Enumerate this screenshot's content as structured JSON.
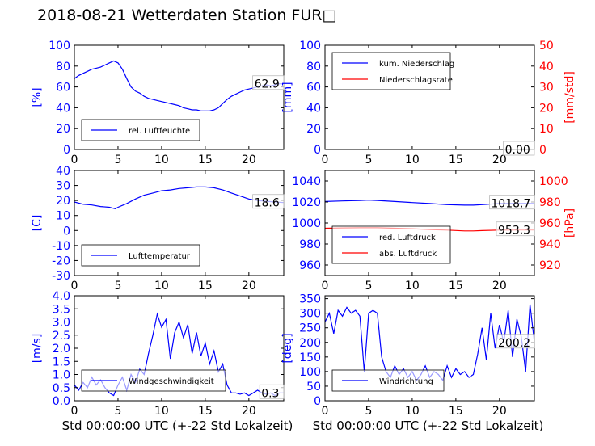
{
  "title": "2018-08-21 Wetterdaten Station FUR□",
  "xlabel": "Std 00:00:00 UTC (+-22 Std Lokalzeit)",
  "colors": {
    "primary": "#0000ff",
    "secondary": "#ff0000"
  },
  "chart_data": [
    {
      "id": "humidity",
      "type": "line",
      "ylabel": "[%]",
      "xlim": [
        0,
        24
      ],
      "ylim": [
        0,
        100
      ],
      "xticks": [
        0,
        5,
        10,
        15,
        20
      ],
      "yticks": [
        0,
        20,
        40,
        60,
        80,
        100
      ],
      "legend": "bottom-left",
      "last_value_label": "62.9",
      "series": [
        {
          "name": "rel. Luftfeuchte",
          "color": "#0000ff",
          "x": [
            0,
            0.5,
            1,
            1.5,
            2,
            2.5,
            3,
            3.5,
            4,
            4.5,
            5,
            5.5,
            6,
            6.5,
            7,
            7.5,
            8,
            8.5,
            9,
            9.5,
            10,
            10.5,
            11,
            11.5,
            12,
            12.5,
            13,
            13.5,
            14,
            14.5,
            15,
            15.5,
            16,
            16.5,
            17,
            17.5,
            18,
            18.5,
            19,
            19.5,
            20,
            20.5,
            21,
            21.5,
            22,
            22.5,
            23,
            23.5,
            24
          ],
          "y": [
            68,
            71,
            73,
            75,
            77,
            78,
            79,
            81,
            83,
            85,
            83,
            77,
            68,
            60,
            56,
            54,
            51,
            49,
            48,
            47,
            46,
            45,
            44,
            43,
            42,
            40,
            39,
            38,
            38,
            37,
            37,
            37,
            38,
            40,
            44,
            48,
            51,
            53,
            55,
            57,
            58,
            59,
            60,
            61,
            62,
            61,
            62,
            63,
            63
          ]
        }
      ]
    },
    {
      "id": "precipitation",
      "type": "line",
      "ylabel": "[mm]",
      "ylabel_right": "[mm/std]",
      "xlim": [
        0,
        24
      ],
      "ylim": [
        0,
        100
      ],
      "ylim_right": [
        0,
        50
      ],
      "xticks": [
        0,
        5,
        10,
        15,
        20
      ],
      "yticks": [
        0,
        20,
        40,
        60,
        80,
        100
      ],
      "yticks_right": [
        0,
        10,
        20,
        30,
        40,
        50
      ],
      "legend": "top-left",
      "last_value_label": "0.00",
      "series": [
        {
          "name": "kum. Niederschlag",
          "color": "#0000ff",
          "x": [
            0,
            24
          ],
          "y": [
            0,
            0
          ]
        },
        {
          "name": "Niederschlagsrate",
          "color": "#ff0000",
          "axis": "right",
          "x": [
            0,
            24
          ],
          "y": [
            0,
            0
          ]
        }
      ]
    },
    {
      "id": "temperature",
      "type": "line",
      "ylabel": "[C]",
      "xlim": [
        0,
        24
      ],
      "ylim": [
        -30,
        40
      ],
      "xticks": [
        0,
        5,
        10,
        15,
        20
      ],
      "yticks": [
        -30,
        -20,
        -10,
        0,
        10,
        20,
        30,
        40
      ],
      "legend": "bottom-left",
      "last_value_label": "18.6",
      "series": [
        {
          "name": "Lufttemperatur",
          "color": "#0000ff",
          "x": [
            0,
            1,
            2,
            3,
            4,
            4.7,
            5,
            6,
            7,
            8,
            9,
            10,
            11,
            12,
            13,
            14,
            15,
            16,
            17,
            18,
            19,
            20,
            21,
            22,
            23,
            24
          ],
          "y": [
            19,
            17.5,
            17,
            16,
            15.5,
            14.5,
            15.5,
            18,
            21,
            23.5,
            25,
            26.5,
            27,
            28,
            28.5,
            29,
            29,
            28.5,
            27,
            25,
            23,
            21,
            20,
            19.5,
            19,
            18.6
          ]
        }
      ]
    },
    {
      "id": "pressure",
      "type": "line",
      "ylabel_right": "[hPa]",
      "xlim": [
        0,
        24
      ],
      "ylim": [
        950,
        1050
      ],
      "ylim_right": [
        910,
        1010
      ],
      "xticks": [
        0,
        5,
        10,
        15,
        20
      ],
      "yticks": [
        960,
        980,
        1000,
        1020,
        1040
      ],
      "yticks_right": [
        920,
        940,
        960,
        980,
        1000
      ],
      "legend": "bottom-left",
      "value_labels": [
        "1018.7",
        "953.3"
      ],
      "series": [
        {
          "name": "red. Luftdruck",
          "color": "#0000ff",
          "x": [
            0,
            2,
            4,
            5,
            6,
            8,
            10,
            12,
            14,
            16,
            17,
            18,
            20,
            22,
            24
          ],
          "y": [
            1020.5,
            1021,
            1021.5,
            1021.8,
            1021.5,
            1020.5,
            1019.5,
            1018.5,
            1017.5,
            1017,
            1017,
            1017.5,
            1018.5,
            1018.7,
            1018.7
          ]
        },
        {
          "name": "abs. Luftdruck",
          "color": "#ff0000",
          "axis": "right",
          "x": [
            0,
            2,
            4,
            6,
            8,
            10,
            12,
            14,
            16,
            17,
            18,
            20,
            22,
            24
          ],
          "y": [
            955,
            955.3,
            955.5,
            955.5,
            955,
            954.5,
            953.8,
            953.2,
            952.5,
            952.5,
            952.8,
            953.2,
            953.3,
            953.3
          ]
        }
      ]
    },
    {
      "id": "windspeed",
      "type": "line",
      "ylabel": "[m/s]",
      "xlim": [
        0,
        24
      ],
      "ylim": [
        0,
        4
      ],
      "xticks": [
        0,
        5,
        10,
        15,
        20
      ],
      "yticks": [
        0.0,
        0.5,
        1.0,
        1.5,
        2.0,
        2.5,
        3.0,
        3.5,
        4.0
      ],
      "ytick_labels": [
        "0.0",
        "0.5",
        "1.0",
        "1.5",
        "2.0",
        "2.5",
        "3.0",
        "3.5",
        "4.0"
      ],
      "legend": "bottom-left",
      "last_value_label": "0.3",
      "series": [
        {
          "name": "Windgeschwindigkeit",
          "color": "#0000ff",
          "x": [
            0,
            0.5,
            1,
            1.5,
            2,
            2.5,
            3,
            3.5,
            4,
            4.5,
            5,
            5.5,
            6,
            6.5,
            7,
            7.5,
            8,
            8.5,
            9,
            9.5,
            10,
            10.5,
            11,
            11.5,
            12,
            12.5,
            13,
            13.5,
            14,
            14.5,
            15,
            15.5,
            16,
            16.5,
            17,
            17.5,
            18,
            18.5,
            19,
            19.5,
            20,
            20.5,
            21,
            21.5,
            22,
            22.5,
            23,
            23.5,
            24
          ],
          "y": [
            0.6,
            0.4,
            0.7,
            0.5,
            0.9,
            0.6,
            0.8,
            0.5,
            0.3,
            0.2,
            0.6,
            0.9,
            0.4,
            1.0,
            0.7,
            1.2,
            1.0,
            1.8,
            2.5,
            3.3,
            2.8,
            3.1,
            1.6,
            2.6,
            3.0,
            2.4,
            2.9,
            1.8,
            2.6,
            1.7,
            2.2,
            1.4,
            1.9,
            1.1,
            1.4,
            0.6,
            0.3,
            0.3,
            0.25,
            0.3,
            0.2,
            0.3,
            0.4,
            0.3,
            0.25,
            0.3,
            0.2,
            0.3,
            0.3
          ]
        }
      ]
    },
    {
      "id": "winddirection",
      "type": "line",
      "ylabel": "[deg]",
      "xlim": [
        0,
        24
      ],
      "ylim": [
        0,
        360
      ],
      "xticks": [
        0,
        5,
        10,
        15,
        20
      ],
      "yticks": [
        0,
        50,
        100,
        150,
        200,
        250,
        300,
        350
      ],
      "legend": "bottom-left",
      "last_value_label": "200.2",
      "series": [
        {
          "name": "Windrichtung",
          "color": "#0000ff",
          "x": [
            0,
            0.5,
            1,
            1.5,
            2,
            2.5,
            3,
            3.5,
            4,
            4.5,
            5,
            5.5,
            6,
            6.5,
            7,
            7.5,
            8,
            8.5,
            9,
            9.5,
            10,
            10.5,
            11,
            11.5,
            12,
            12.5,
            13,
            13.5,
            14,
            14.5,
            15,
            15.5,
            16,
            16.5,
            17,
            17.5,
            18,
            18.5,
            19,
            19.5,
            20,
            20.5,
            21,
            21.5,
            22,
            22.5,
            23,
            23.5,
            24
          ],
          "y": [
            270,
            300,
            230,
            310,
            290,
            320,
            300,
            310,
            290,
            100,
            300,
            310,
            300,
            150,
            100,
            80,
            120,
            90,
            110,
            80,
            100,
            70,
            90,
            120,
            80,
            100,
            90,
            70,
            120,
            80,
            110,
            90,
            100,
            80,
            90,
            160,
            250,
            140,
            300,
            180,
            260,
            200,
            310,
            150,
            280,
            220,
            100,
            330,
            200
          ]
        }
      ]
    }
  ]
}
